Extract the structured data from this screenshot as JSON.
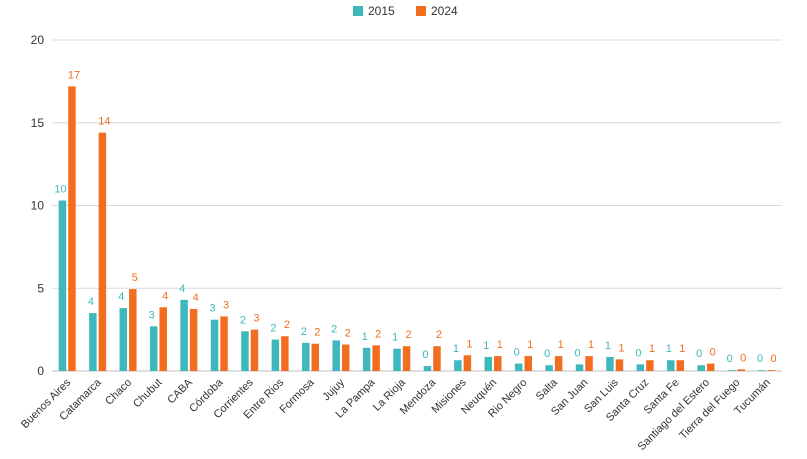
{
  "chart_data": {
    "type": "bar",
    "title": "",
    "xlabel": "",
    "ylabel": "",
    "ylim": [
      0,
      20
    ],
    "yticks": [
      0,
      5,
      10,
      15,
      20
    ],
    "grid": true,
    "legend_position": "top-center",
    "categories": [
      "Buenos Aires",
      "Catamarca",
      "Chaco",
      "Chubut",
      "CABA",
      "Córdoba",
      "Corrientes",
      "Entre Rios",
      "Formosa",
      "Jujuy",
      "La Pampa",
      "La Rioja",
      "Mendoza",
      "Misiones",
      "Neuquén",
      "Rio Negro",
      "Salta",
      "San Juan",
      "San Luis",
      "Santa Cruz",
      "Santa Fe",
      "Santiago del Estero",
      "Tierra del Fuego",
      "Tucumán"
    ],
    "series": [
      {
        "name": "2015",
        "color": "#3fb8bd",
        "values": [
          10.3,
          3.5,
          3.8,
          2.7,
          4.3,
          3.1,
          2.4,
          1.9,
          1.7,
          1.85,
          1.4,
          1.35,
          0.3,
          0.65,
          0.85,
          0.45,
          0.35,
          0.4,
          0.85,
          0.4,
          0.65,
          0.35,
          0.05,
          0.03
        ],
        "labels": [
          "10",
          "4",
          "4",
          "3",
          "4",
          "3",
          "2",
          "2",
          "2",
          "2",
          "1",
          "1",
          "0",
          "1",
          "1",
          "0",
          "0",
          "0",
          "1",
          "0",
          "1",
          "0",
          "0",
          "0"
        ]
      },
      {
        "name": "2024",
        "color": "#f26d1f",
        "values": [
          17.2,
          14.4,
          4.95,
          3.85,
          3.75,
          3.3,
          2.5,
          2.1,
          1.65,
          1.6,
          1.55,
          1.5,
          1.5,
          0.95,
          0.9,
          0.9,
          0.9,
          0.9,
          0.7,
          0.65,
          0.65,
          0.45,
          0.1,
          0.05
        ],
        "labels": [
          "17",
          "14",
          "5",
          "4",
          "4",
          "3",
          "3",
          "2",
          "2",
          "2",
          "2",
          "2",
          "2",
          "1",
          "1",
          "1",
          "1",
          "1",
          "1",
          "1",
          "1",
          "0",
          "0",
          "0"
        ]
      }
    ]
  }
}
